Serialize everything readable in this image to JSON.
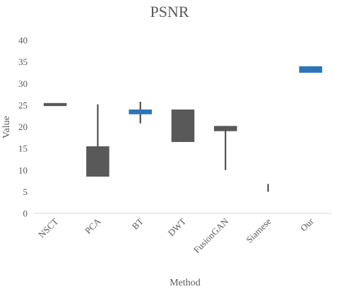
{
  "chart_data": {
    "type": "box",
    "title": "PSNR",
    "xlabel": "Method",
    "ylabel": "Value",
    "ylim": [
      0,
      40
    ],
    "yticks": [
      0,
      5,
      10,
      15,
      20,
      25,
      30,
      35,
      40
    ],
    "grid": false,
    "legend": "none",
    "categories": [
      "NSCT",
      "PCA",
      "BT",
      "DWT",
      "FusionGAN",
      "Siamese",
      "Our"
    ],
    "boxes": [
      {
        "category": "NSCT",
        "low": 25.0,
        "high": 25.0,
        "box_low": 24.8,
        "box_high": 25.5,
        "color": "#595959"
      },
      {
        "category": "PCA",
        "low": 8.5,
        "high": 25.2,
        "box_low": 8.5,
        "box_high": 15.5,
        "color": "#595959"
      },
      {
        "category": "BT",
        "low": 20.8,
        "high": 25.8,
        "box_low": 22.9,
        "box_high": 24.0,
        "color": "#2e75b6"
      },
      {
        "category": "DWT",
        "low": 16.5,
        "high": 24.0,
        "box_low": 16.5,
        "box_high": 24.0,
        "color": "#595959"
      },
      {
        "category": "FusionGAN",
        "low": 10.0,
        "high": 20.2,
        "box_low": 19.0,
        "box_high": 20.2,
        "color": "#595959"
      },
      {
        "category": "Siamese",
        "low": 5.0,
        "high": 6.8,
        "box_low": 5.0,
        "box_high": 5.0,
        "color": "#595959"
      },
      {
        "category": "Our",
        "low": 32.5,
        "high": 34.0,
        "box_low": 32.5,
        "box_high": 34.0,
        "color": "#2e75b6"
      }
    ]
  }
}
